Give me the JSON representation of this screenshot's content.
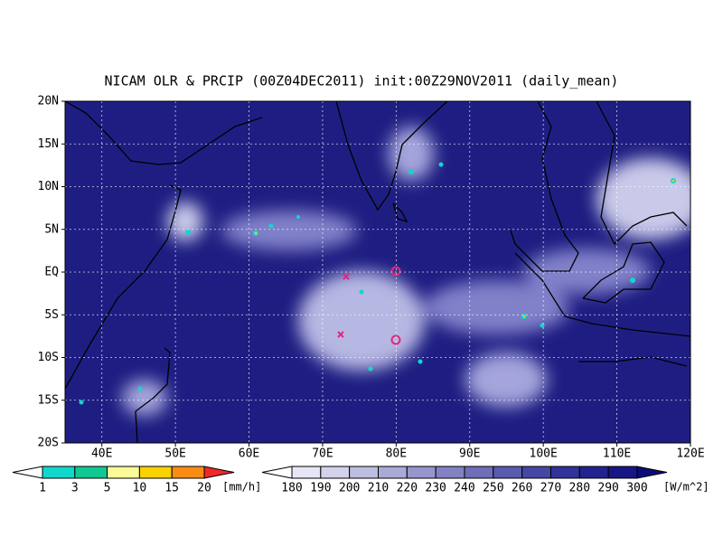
{
  "title": "NICAM OLR & PRCIP (00Z04DEC2011) init:00Z29NOV2011 (daily_mean)",
  "map": {
    "lon_range": [
      35,
      120
    ],
    "lat_range": [
      -20,
      20
    ],
    "lon_ticks": [
      {
        "value": 40,
        "label": "40E"
      },
      {
        "value": 50,
        "label": "50E"
      },
      {
        "value": 60,
        "label": "60E"
      },
      {
        "value": 70,
        "label": "70E"
      },
      {
        "value": 80,
        "label": "80E"
      },
      {
        "value": 90,
        "label": "90E"
      },
      {
        "value": 100,
        "label": "100E"
      },
      {
        "value": 110,
        "label": "110E"
      },
      {
        "value": 120,
        "label": "120E"
      }
    ],
    "lat_ticks": [
      {
        "value": 20,
        "label": "20N"
      },
      {
        "value": 15,
        "label": "15N"
      },
      {
        "value": 10,
        "label": "10N"
      },
      {
        "value": 5,
        "label": "5N"
      },
      {
        "value": 0,
        "label": "EQ"
      },
      {
        "value": -5,
        "label": "5S"
      },
      {
        "value": -10,
        "label": "10S"
      },
      {
        "value": -15,
        "label": "15S"
      },
      {
        "value": -20,
        "label": "20S"
      }
    ]
  },
  "precip_colorbar": {
    "levels": [
      1,
      3,
      5,
      10,
      15,
      20
    ],
    "unit": "[mm/h]",
    "colors": [
      "#ffffff",
      "#10d8cc",
      "#10c890",
      "#fafa96",
      "#fad200",
      "#fa8c14",
      "#f02828"
    ]
  },
  "olr_colorbar": {
    "levels": [
      180,
      190,
      200,
      210,
      220,
      230,
      240,
      250,
      260,
      270,
      280,
      290,
      300
    ],
    "unit": "[W/m^2]",
    "colors": [
      "#ffffff",
      "#e6e6f5",
      "#d2d2eb",
      "#bebee1",
      "#aaaad7",
      "#9696cd",
      "#8282c3",
      "#6e6eb9",
      "#5a5aaf",
      "#4646a5",
      "#32329b",
      "#23238f",
      "#161685",
      "#0c0c78"
    ]
  }
}
